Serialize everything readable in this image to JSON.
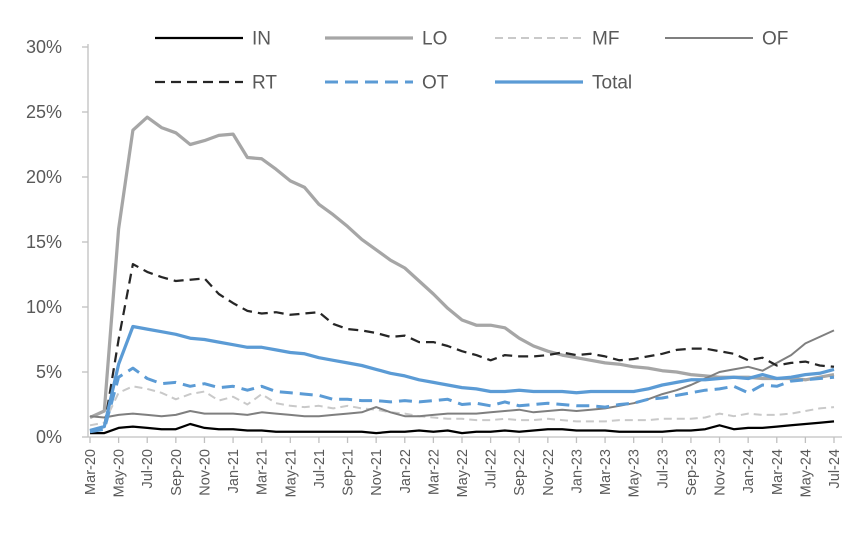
{
  "page": {
    "background": "#ffffff"
  },
  "chart_data": {
    "type": "line",
    "title": "",
    "xlabel": "",
    "ylabel": "",
    "grid": "off",
    "legend_position": "top",
    "y_axis": {
      "min": 0,
      "max": 30,
      "step": 5,
      "tick_suffix": "%"
    },
    "x_tick_step": 2,
    "months": [
      "Mar-20",
      "Apr-20",
      "May-20",
      "Jun-20",
      "Jul-20",
      "Aug-20",
      "Sep-20",
      "Oct-20",
      "Nov-20",
      "Dec-20",
      "Jan-21",
      "Feb-21",
      "Mar-21",
      "Apr-21",
      "May-21",
      "Jun-21",
      "Jul-21",
      "Aug-21",
      "Sep-21",
      "Oct-21",
      "Nov-21",
      "Dec-21",
      "Jan-22",
      "Feb-22",
      "Mar-22",
      "Apr-22",
      "May-22",
      "Jun-22",
      "Jul-22",
      "Aug-22",
      "Sep-22",
      "Oct-22",
      "Nov-22",
      "Dec-22",
      "Jan-23",
      "Feb-23",
      "Mar-23",
      "Apr-23",
      "May-23",
      "Jun-23",
      "Jul-23",
      "Aug-23",
      "Sep-23",
      "Oct-23",
      "Nov-23",
      "Dec-23",
      "Jan-24",
      "Feb-24",
      "Mar-24",
      "Apr-24",
      "May-24",
      "Jun-24",
      "Jul-24"
    ],
    "legend": {
      "rows": [
        [
          "IN",
          "LO",
          "MF",
          "OF"
        ],
        [
          "RT",
          "OT",
          "Total"
        ]
      ]
    },
    "styles": {
      "axis_color": "#c0c0c0",
      "label_color": "#595959",
      "blue": "#5b9bd5"
    },
    "series": [
      {
        "name": "IN",
        "color": "#000000",
        "dash": null,
        "width": 2.25,
        "values": [
          0.3,
          0.3,
          0.7,
          0.8,
          0.7,
          0.6,
          0.6,
          1.0,
          0.7,
          0.6,
          0.6,
          0.5,
          0.5,
          0.4,
          0.4,
          0.4,
          0.4,
          0.4,
          0.4,
          0.4,
          0.3,
          0.4,
          0.4,
          0.5,
          0.4,
          0.5,
          0.3,
          0.4,
          0.4,
          0.5,
          0.4,
          0.5,
          0.6,
          0.6,
          0.5,
          0.5,
          0.5,
          0.4,
          0.4,
          0.4,
          0.4,
          0.5,
          0.5,
          0.6,
          0.9,
          0.6,
          0.7,
          0.7,
          0.8,
          0.9,
          1.0,
          1.1,
          1.2
        ]
      },
      {
        "name": "LO",
        "color": "#a6a6a6",
        "dash": null,
        "width": 3.25,
        "values": [
          1.5,
          2.0,
          16.0,
          23.6,
          24.6,
          23.8,
          23.4,
          22.5,
          22.8,
          23.2,
          23.3,
          21.5,
          21.4,
          20.6,
          19.7,
          19.2,
          17.9,
          17.1,
          16.2,
          15.2,
          14.4,
          13.6,
          13.0,
          12.0,
          11.0,
          9.9,
          9.0,
          8.6,
          8.6,
          8.4,
          7.6,
          7.0,
          6.6,
          6.3,
          6.1,
          5.9,
          5.7,
          5.6,
          5.4,
          5.3,
          5.1,
          5.0,
          4.8,
          4.7,
          4.6,
          4.6,
          4.6,
          4.5,
          4.5,
          4.5,
          4.4,
          4.6,
          4.8
        ]
      },
      {
        "name": "MF",
        "color": "#c9c9c9",
        "dash": "8 5",
        "width": 2,
        "values": [
          0.9,
          1.1,
          3.4,
          3.9,
          3.7,
          3.4,
          2.9,
          3.3,
          3.5,
          2.8,
          3.1,
          2.5,
          3.3,
          2.6,
          2.4,
          2.3,
          2.4,
          2.2,
          2.4,
          2.2,
          2.1,
          1.9,
          1.8,
          1.6,
          1.5,
          1.4,
          1.4,
          1.3,
          1.3,
          1.4,
          1.3,
          1.3,
          1.4,
          1.3,
          1.2,
          1.2,
          1.2,
          1.3,
          1.3,
          1.3,
          1.4,
          1.4,
          1.4,
          1.5,
          1.8,
          1.6,
          1.8,
          1.7,
          1.7,
          1.8,
          2.0,
          2.2,
          2.3
        ]
      },
      {
        "name": "OF",
        "color": "#7f7f7f",
        "dash": null,
        "width": 2,
        "values": [
          1.6,
          1.5,
          1.7,
          1.8,
          1.7,
          1.6,
          1.7,
          2.0,
          1.8,
          1.8,
          1.8,
          1.7,
          1.9,
          1.8,
          1.7,
          1.6,
          1.6,
          1.7,
          1.8,
          1.9,
          2.3,
          1.9,
          1.6,
          1.6,
          1.7,
          1.8,
          1.8,
          1.8,
          1.9,
          2.0,
          2.1,
          1.9,
          2.0,
          2.1,
          2.0,
          2.1,
          2.2,
          2.4,
          2.6,
          2.9,
          3.3,
          3.6,
          4.0,
          4.5,
          5.0,
          5.2,
          5.4,
          5.1,
          5.7,
          6.3,
          7.2,
          7.7,
          8.2
        ]
      },
      {
        "name": "RT",
        "color": "#262626",
        "dash": "10 6",
        "width": 2.25,
        "values": [
          0.5,
          0.8,
          7.5,
          13.3,
          12.7,
          12.3,
          12.0,
          12.1,
          12.2,
          11.0,
          10.3,
          9.7,
          9.5,
          9.6,
          9.4,
          9.5,
          9.6,
          8.7,
          8.3,
          8.2,
          8.0,
          7.7,
          7.8,
          7.3,
          7.3,
          7.0,
          6.6,
          6.3,
          5.9,
          6.3,
          6.2,
          6.2,
          6.3,
          6.5,
          6.3,
          6.4,
          6.2,
          5.9,
          6.0,
          6.2,
          6.4,
          6.7,
          6.8,
          6.8,
          6.6,
          6.4,
          5.9,
          6.1,
          5.5,
          5.7,
          5.8,
          5.5,
          5.4
        ]
      },
      {
        "name": "OT",
        "color": "#5b9bd5",
        "dash": "13 7",
        "width": 3,
        "values": [
          0.4,
          0.6,
          4.6,
          5.3,
          4.5,
          4.1,
          4.2,
          3.9,
          4.1,
          3.8,
          3.9,
          3.6,
          3.9,
          3.5,
          3.4,
          3.3,
          3.2,
          2.9,
          2.9,
          2.8,
          2.8,
          2.7,
          2.8,
          2.7,
          2.8,
          2.9,
          2.5,
          2.6,
          2.4,
          2.7,
          2.4,
          2.5,
          2.6,
          2.5,
          2.4,
          2.4,
          2.3,
          2.5,
          2.6,
          2.9,
          3.0,
          3.2,
          3.4,
          3.6,
          3.7,
          3.9,
          3.4,
          4.0,
          3.9,
          4.3,
          4.4,
          4.5,
          4.6
        ]
      },
      {
        "name": "Total",
        "color": "#5b9bd5",
        "dash": null,
        "width": 3.25,
        "values": [
          0.5,
          0.8,
          5.6,
          8.5,
          8.3,
          8.1,
          7.9,
          7.6,
          7.5,
          7.3,
          7.1,
          6.9,
          6.9,
          6.7,
          6.5,
          6.4,
          6.1,
          5.9,
          5.7,
          5.5,
          5.2,
          4.9,
          4.7,
          4.4,
          4.2,
          4.0,
          3.8,
          3.7,
          3.5,
          3.5,
          3.6,
          3.5,
          3.5,
          3.5,
          3.4,
          3.5,
          3.5,
          3.5,
          3.5,
          3.7,
          4.0,
          4.2,
          4.4,
          4.4,
          4.5,
          4.6,
          4.5,
          4.8,
          4.5,
          4.6,
          4.8,
          4.9,
          5.2
        ]
      }
    ]
  }
}
